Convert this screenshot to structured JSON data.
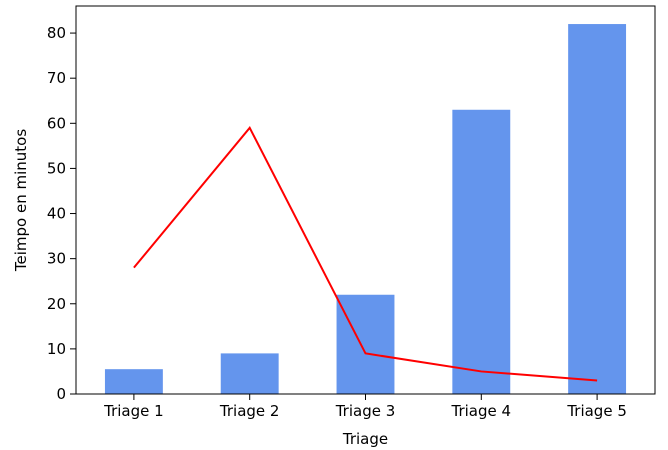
{
  "chart_data": {
    "type": "bar",
    "title": "",
    "xlabel": "Triage",
    "ylabel": "Teimpo en minutos",
    "categories": [
      "Triage 1",
      "Triage 2",
      "Triage 3",
      "Triage 4",
      "Triage 5"
    ],
    "ylim": [
      0,
      86
    ],
    "yticks": [
      0,
      10,
      20,
      30,
      40,
      50,
      60,
      70,
      80
    ],
    "grid": false,
    "legend": "none",
    "series": [
      {
        "type": "bar",
        "color": "#6495ed",
        "values": [
          5.5,
          9,
          22,
          63,
          82
        ]
      },
      {
        "type": "line",
        "color": "#ff0000",
        "values": [
          28,
          59,
          9,
          5,
          3
        ]
      }
    ]
  }
}
